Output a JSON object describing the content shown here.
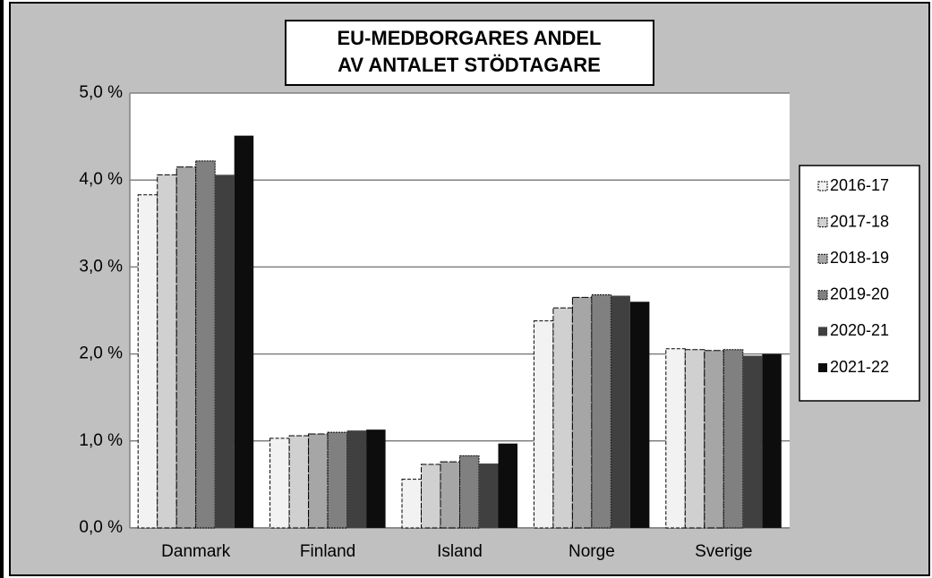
{
  "chart_data": {
    "type": "bar",
    "title": [
      "EU-MEDBORGARES ANDEL",
      "AV ANTALET STÖDTAGARE"
    ],
    "categories": [
      "Danmark",
      "Finland",
      "Island",
      "Norge",
      "Sverige"
    ],
    "series": [
      {
        "name": "2016-17",
        "color": "#f2f2f2",
        "values": [
          3.83,
          1.03,
          0.56,
          2.38,
          2.06
        ]
      },
      {
        "name": "2017-18",
        "color": "#d0d0d0",
        "values": [
          4.06,
          1.06,
          0.73,
          2.53,
          2.05
        ]
      },
      {
        "name": "2018-19",
        "color": "#a6a6a6",
        "values": [
          4.15,
          1.08,
          0.76,
          2.65,
          2.04
        ]
      },
      {
        "name": "2019-20",
        "color": "#808080",
        "values": [
          4.22,
          1.1,
          0.83,
          2.68,
          2.05
        ]
      },
      {
        "name": "2020-21",
        "color": "#404040",
        "values": [
          4.06,
          1.12,
          0.74,
          2.67,
          1.98
        ]
      },
      {
        "name": "2021-22",
        "color": "#0d0d0d",
        "values": [
          4.51,
          1.13,
          0.97,
          2.6,
          2.0
        ]
      }
    ],
    "ylim": [
      0,
      5
    ],
    "yticks": [
      {
        "value": 0,
        "label": "0,0 %"
      },
      {
        "value": 1,
        "label": "1,0 %"
      },
      {
        "value": 2,
        "label": "2,0 %"
      },
      {
        "value": 3,
        "label": "3,0 %"
      },
      {
        "value": 4,
        "label": "4,0 %"
      },
      {
        "value": 5,
        "label": "5,0 %"
      }
    ],
    "grid": true,
    "legend": "right"
  }
}
